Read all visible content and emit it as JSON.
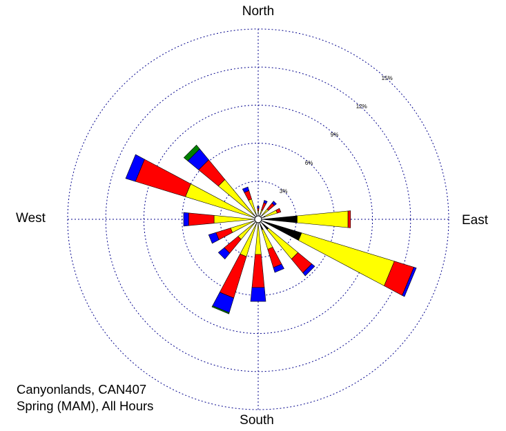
{
  "chart_data": {
    "type": "windrose",
    "directions": {
      "north": "North",
      "south": "South",
      "east": "East",
      "west": "West"
    },
    "rings": [
      "3%",
      "6%",
      "9%",
      "12%",
      "15%"
    ],
    "ring_values": [
      3,
      6,
      9,
      12,
      15
    ],
    "colors": {
      "class1": "#000000",
      "class2": "#ffff00",
      "class3": "#ff0000",
      "class4": "#0000ff",
      "class5": "#008000",
      "grid": "#00008b"
    },
    "sectors": [
      {
        "bearing": 0,
        "segments": [
          0,
          0.4,
          0.2,
          0.15,
          0
        ]
      },
      {
        "bearing": 22.5,
        "segments": [
          0,
          0.5,
          0.6,
          0.2,
          0
        ]
      },
      {
        "bearing": 45,
        "segments": [
          0,
          0.8,
          0.6,
          0.2,
          0
        ]
      },
      {
        "bearing": 67.5,
        "segments": [
          0.3,
          1.0,
          0.3,
          0,
          0
        ]
      },
      {
        "bearing": 90,
        "segments": [
          2.8,
          4.0,
          0.2,
          0,
          0
        ]
      },
      {
        "bearing": 112.5,
        "segments": [
          3.3,
          7.6,
          1.6,
          0.2,
          0
        ]
      },
      {
        "bearing": 135,
        "segments": [
          0.8,
          3.0,
          1.4,
          0.3,
          0
        ]
      },
      {
        "bearing": 157.5,
        "segments": [
          0.6,
          1.6,
          1.5,
          0.4,
          0
        ]
      },
      {
        "bearing": 180,
        "segments": [
          0,
          2.5,
          2.6,
          1.1,
          0
        ]
      },
      {
        "bearing": 202.5,
        "segments": [
          0,
          2.8,
          3.4,
          1.2,
          0.1
        ]
      },
      {
        "bearing": 225,
        "segments": [
          0,
          1.8,
          1.4,
          0.6,
          0
        ]
      },
      {
        "bearing": 247.5,
        "segments": [
          0,
          2.0,
          1.2,
          0.6,
          0
        ]
      },
      {
        "bearing": 270,
        "segments": [
          0,
          3.2,
          2.0,
          0.4,
          0
        ]
      },
      {
        "bearing": 292.5,
        "segments": [
          0,
          5.7,
          4.1,
          0.8,
          0
        ]
      },
      {
        "bearing": 315,
        "segments": [
          0,
          3.8,
          2.0,
          1.1,
          0.4
        ]
      },
      {
        "bearing": 337.5,
        "segments": [
          0,
          1.4,
          0.7,
          0.3,
          0
        ]
      }
    ]
  },
  "caption": {
    "line1": "Canyonlands, CAN407",
    "line2": "Spring (MAM), All Hours"
  }
}
